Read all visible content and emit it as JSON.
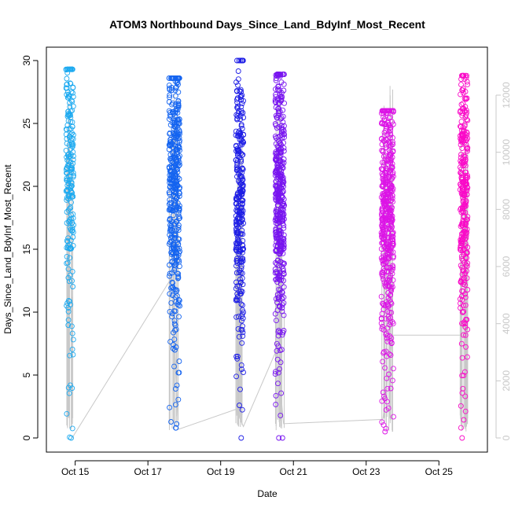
{
  "chart_data": {
    "type": "scatter",
    "title": "ATOM3 Northbound Days_Since_Land_BdyInf_Most_Recent",
    "xlabel": "Date",
    "ylabel": "Days_Since_Land_BdyInf_Most_Recent",
    "x_ticks": [
      {
        "date": "2018-10-15",
        "label": "Oct 15"
      },
      {
        "date": "2018-10-17",
        "label": "Oct 17"
      },
      {
        "date": "2018-10-19",
        "label": "Oct 19"
      },
      {
        "date": "2018-10-21",
        "label": "Oct 21"
      },
      {
        "date": "2018-10-23",
        "label": "Oct 23"
      },
      {
        "date": "2018-10-25",
        "label": "Oct 25"
      }
    ],
    "x_range": [
      "2018-10-14T05:00",
      "2018-10-26T08:00"
    ],
    "y_left": {
      "range": [
        0,
        30
      ],
      "ticks": [
        "0",
        "5",
        "10",
        "15",
        "20",
        "25",
        "30"
      ]
    },
    "y_right": {
      "range": [
        0,
        12500
      ],
      "ticks": [
        "0",
        "2000",
        "4000",
        "6000",
        "8000",
        "10000",
        "12000"
      ],
      "color": "#c8c8c8"
    },
    "grid": false,
    "legend": "none",
    "series": [
      {
        "start": "2018-10-14T18:00",
        "end": "2018-10-14T23:00",
        "color": "#1eaaf0",
        "y_min": 0,
        "y_max": 29.3,
        "center": 21.5,
        "count": 220
      },
      {
        "start": "2018-10-17T14:00",
        "end": "2018-10-17T21:00",
        "color": "#1464f0",
        "y_min": 0.8,
        "y_max": 28.6,
        "center": 20.0,
        "count": 420
      },
      {
        "start": "2018-10-19T10:00",
        "end": "2018-10-19T15:00",
        "color": "#1e1ee6",
        "y_min": 0,
        "y_max": 30.0,
        "center": 18.5,
        "count": 300
      },
      {
        "start": "2018-10-20T12:00",
        "end": "2018-10-20T18:00",
        "color": "#7814f0",
        "y_min": 0,
        "y_max": 28.9,
        "center": 19.0,
        "count": 420
      },
      {
        "start": "2018-10-23T10:00",
        "end": "2018-10-23T18:00",
        "color": "#dc14e6",
        "y_min": 0.5,
        "y_max": 26.0,
        "center": 18.0,
        "count": 480
      },
      {
        "start": "2018-10-25T14:00",
        "end": "2018-10-25T19:00",
        "color": "#fa0ac8",
        "y_min": 0,
        "y_max": 28.8,
        "center": 19.5,
        "count": 300
      }
    ],
    "cumulative_line": {
      "color": "#c8c8c8",
      "points": [
        {
          "x": "2018-10-14T22:00",
          "y": 0
        },
        {
          "x": "2018-10-17T15:30",
          "y": 5600
        },
        {
          "x": "2018-10-17T20:00",
          "y": 300
        },
        {
          "x": "2018-10-19T10:00",
          "y": 1000
        },
        {
          "x": "2018-10-19T15:00",
          "y": 400
        },
        {
          "x": "2018-10-20T13:00",
          "y": 3100
        },
        {
          "x": "2018-10-20T17:30",
          "y": 500
        },
        {
          "x": "2018-10-23T11:00",
          "y": 650
        },
        {
          "x": "2018-10-23T17:30",
          "y": 3600
        },
        {
          "x": "2018-10-25T14:00",
          "y": 3600
        },
        {
          "x": "2018-10-25T19:00",
          "y": 3600
        }
      ]
    }
  }
}
